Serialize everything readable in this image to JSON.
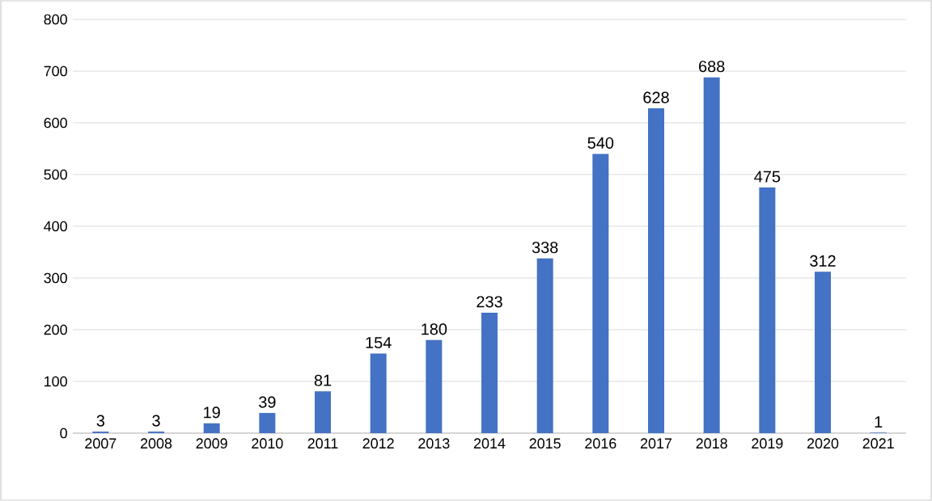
{
  "chart_data": {
    "type": "bar",
    "categories": [
      "2007",
      "2008",
      "2009",
      "2010",
      "2011",
      "2012",
      "2013",
      "2014",
      "2015",
      "2016",
      "2017",
      "2018",
      "2019",
      "2020",
      "2021"
    ],
    "values": [
      3,
      3,
      19,
      39,
      81,
      154,
      180,
      233,
      338,
      540,
      628,
      688,
      475,
      312,
      1
    ],
    "color": "#4472c4",
    "ylim": [
      0,
      800
    ],
    "yticks": [
      0,
      100,
      200,
      300,
      400,
      500,
      600,
      700,
      800
    ],
    "grid": "y",
    "data_labels": true
  }
}
